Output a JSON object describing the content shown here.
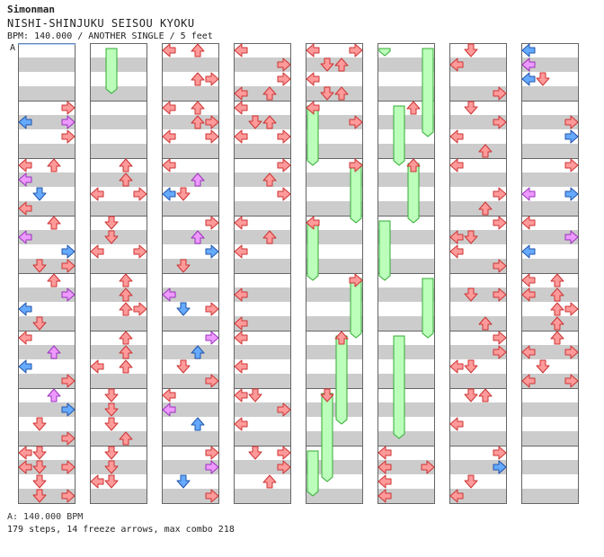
{
  "header": {
    "author": "Simonman",
    "title": "NISHI-SHINJUKU SEISOU KYOKU",
    "meta": "BPM: 140.000 / ANOTHER SINGLE / 5 feet",
    "section_marker": "A"
  },
  "footer": {
    "bpm_line": "A: 140.000 BPM",
    "stats_line": "179 steps, 14 freeze arrows, max combo 218"
  },
  "colors": {
    "arrow_red": "#ff9a9a",
    "arrow_blue": "#66aaff",
    "arrow_violet": "#ee99ff",
    "freeze_green": "#bbffbb",
    "row_gray": "#cccccc"
  },
  "chart_data": {
    "type": "step-chart",
    "columns": 8,
    "measures_per_column": 8,
    "lanes": [
      "left",
      "down",
      "up",
      "right"
    ],
    "arrows": [
      [
        0,
        1,
        0,
        3,
        "red"
      ],
      [
        0,
        1,
        1,
        3,
        "violet"
      ],
      [
        0,
        1,
        1,
        0,
        "blue"
      ],
      [
        0,
        1,
        2,
        3,
        "red"
      ],
      [
        0,
        2,
        0,
        0,
        "red"
      ],
      [
        0,
        2,
        0,
        2,
        "red"
      ],
      [
        0,
        2,
        1,
        0,
        "violet"
      ],
      [
        0,
        2,
        2,
        1,
        "blue"
      ],
      [
        0,
        2,
        3,
        0,
        "red"
      ],
      [
        0,
        3,
        0,
        2,
        "red"
      ],
      [
        0,
        3,
        1,
        0,
        "violet"
      ],
      [
        0,
        3,
        2,
        3,
        "blue"
      ],
      [
        0,
        3,
        3,
        1,
        "red"
      ],
      [
        0,
        3,
        3,
        3,
        "red"
      ],
      [
        0,
        4,
        0,
        2,
        "red"
      ],
      [
        0,
        4,
        1,
        3,
        "violet"
      ],
      [
        0,
        4,
        2,
        0,
        "blue"
      ],
      [
        0,
        4,
        3,
        1,
        "red"
      ],
      [
        0,
        5,
        0,
        0,
        "red"
      ],
      [
        0,
        5,
        1,
        2,
        "violet"
      ],
      [
        0,
        5,
        2,
        0,
        "blue"
      ],
      [
        0,
        5,
        3,
        3,
        "red"
      ],
      [
        0,
        6,
        0,
        2,
        "violet"
      ],
      [
        0,
        6,
        1,
        3,
        "blue"
      ],
      [
        0,
        6,
        2,
        1,
        "red"
      ],
      [
        0,
        6,
        3,
        3,
        "red"
      ],
      [
        0,
        7,
        0,
        0,
        "red"
      ],
      [
        0,
        7,
        0,
        1,
        "red"
      ],
      [
        0,
        7,
        1,
        0,
        "red"
      ],
      [
        0,
        7,
        1,
        1,
        "red"
      ],
      [
        0,
        7,
        1,
        3,
        "red"
      ],
      [
        0,
        7,
        2,
        1,
        "red"
      ],
      [
        0,
        7,
        3,
        1,
        "red"
      ],
      [
        0,
        7,
        3,
        3,
        "red"
      ],
      [
        1,
        2,
        0,
        2,
        "red"
      ],
      [
        1,
        2,
        1,
        2,
        "red"
      ],
      [
        1,
        2,
        2,
        0,
        "red"
      ],
      [
        1,
        2,
        2,
        3,
        "red"
      ],
      [
        1,
        3,
        0,
        1,
        "red"
      ],
      [
        1,
        3,
        1,
        1,
        "red"
      ],
      [
        1,
        3,
        2,
        0,
        "red"
      ],
      [
        1,
        3,
        2,
        3,
        "red"
      ],
      [
        1,
        4,
        0,
        2,
        "red"
      ],
      [
        1,
        4,
        1,
        2,
        "red"
      ],
      [
        1,
        4,
        2,
        2,
        "red"
      ],
      [
        1,
        4,
        2,
        3,
        "red"
      ],
      [
        1,
        5,
        0,
        2,
        "red"
      ],
      [
        1,
        5,
        1,
        2,
        "red"
      ],
      [
        1,
        5,
        2,
        0,
        "red"
      ],
      [
        1,
        5,
        2,
        2,
        "red"
      ],
      [
        1,
        6,
        0,
        1,
        "red"
      ],
      [
        1,
        6,
        1,
        1,
        "red"
      ],
      [
        1,
        6,
        2,
        1,
        "red"
      ],
      [
        1,
        6,
        3,
        2,
        "red"
      ],
      [
        1,
        7,
        0,
        1,
        "red"
      ],
      [
        1,
        7,
        1,
        1,
        "red"
      ],
      [
        1,
        7,
        2,
        0,
        "red"
      ],
      [
        1,
        7,
        2,
        1,
        "red"
      ],
      [
        2,
        0,
        0,
        0,
        "red"
      ],
      [
        2,
        0,
        0,
        2,
        "red"
      ],
      [
        2,
        0,
        2,
        2,
        "red"
      ],
      [
        2,
        0,
        2,
        3,
        "red"
      ],
      [
        2,
        1,
        0,
        0,
        "red"
      ],
      [
        2,
        1,
        0,
        2,
        "red"
      ],
      [
        2,
        1,
        1,
        2,
        "red"
      ],
      [
        2,
        1,
        1,
        3,
        "red"
      ],
      [
        2,
        1,
        2,
        0,
        "red"
      ],
      [
        2,
        1,
        2,
        3,
        "red"
      ],
      [
        2,
        2,
        0,
        0,
        "red"
      ],
      [
        2,
        2,
        1,
        2,
        "violet"
      ],
      [
        2,
        2,
        2,
        0,
        "blue"
      ],
      [
        2,
        2,
        2,
        1,
        "red"
      ],
      [
        2,
        3,
        0,
        3,
        "red"
      ],
      [
        2,
        3,
        1,
        2,
        "violet"
      ],
      [
        2,
        3,
        2,
        3,
        "blue"
      ],
      [
        2,
        3,
        3,
        1,
        "red"
      ],
      [
        2,
        4,
        1,
        0,
        "violet"
      ],
      [
        2,
        4,
        2,
        1,
        "blue"
      ],
      [
        2,
        4,
        2,
        3,
        "red"
      ],
      [
        2,
        5,
        0,
        3,
        "violet"
      ],
      [
        2,
        5,
        1,
        2,
        "blue"
      ],
      [
        2,
        5,
        2,
        1,
        "red"
      ],
      [
        2,
        5,
        3,
        3,
        "red"
      ],
      [
        2,
        6,
        0,
        0,
        "red"
      ],
      [
        2,
        6,
        1,
        0,
        "violet"
      ],
      [
        2,
        6,
        2,
        2,
        "blue"
      ],
      [
        2,
        7,
        0,
        3,
        "red"
      ],
      [
        2,
        7,
        1,
        3,
        "violet"
      ],
      [
        2,
        7,
        2,
        1,
        "blue"
      ],
      [
        2,
        7,
        3,
        3,
        "red"
      ],
      [
        3,
        0,
        0,
        0,
        "red"
      ],
      [
        3,
        0,
        1,
        3,
        "red"
      ],
      [
        3,
        0,
        2,
        3,
        "red"
      ],
      [
        3,
        0,
        3,
        0,
        "red"
      ],
      [
        3,
        0,
        3,
        2,
        "red"
      ],
      [
        3,
        1,
        0,
        0,
        "red"
      ],
      [
        3,
        1,
        1,
        1,
        "red"
      ],
      [
        3,
        1,
        1,
        2,
        "red"
      ],
      [
        3,
        1,
        2,
        0,
        "red"
      ],
      [
        3,
        1,
        2,
        3,
        "red"
      ],
      [
        3,
        2,
        0,
        3,
        "red"
      ],
      [
        3,
        2,
        1,
        2,
        "red"
      ],
      [
        3,
        2,
        2,
        3,
        "red"
      ],
      [
        3,
        3,
        0,
        0,
        "red"
      ],
      [
        3,
        3,
        1,
        2,
        "red"
      ],
      [
        3,
        3,
        2,
        0,
        "red"
      ],
      [
        3,
        4,
        1,
        0,
        "red"
      ],
      [
        3,
        4,
        3,
        0,
        "red"
      ],
      [
        3,
        5,
        0,
        0,
        "red"
      ],
      [
        3,
        5,
        2,
        0,
        "red"
      ],
      [
        3,
        6,
        0,
        0,
        "red"
      ],
      [
        3,
        6,
        0,
        1,
        "red"
      ],
      [
        3,
        6,
        1,
        3,
        "red"
      ],
      [
        3,
        6,
        2,
        0,
        "red"
      ],
      [
        3,
        7,
        0,
        1,
        "red"
      ],
      [
        3,
        7,
        0,
        3,
        "red"
      ],
      [
        3,
        7,
        1,
        3,
        "red"
      ],
      [
        3,
        7,
        2,
        2,
        "red"
      ],
      [
        4,
        0,
        0,
        0,
        "red"
      ],
      [
        4,
        0,
        0,
        3,
        "red"
      ],
      [
        4,
        0,
        1,
        1,
        "red"
      ],
      [
        4,
        0,
        1,
        2,
        "red"
      ],
      [
        4,
        0,
        2,
        0,
        "red"
      ],
      [
        4,
        0,
        3,
        1,
        "red"
      ],
      [
        4,
        0,
        3,
        2,
        "red"
      ],
      [
        4,
        1,
        0,
        0,
        "red"
      ],
      [
        4,
        1,
        1,
        3,
        "red"
      ],
      [
        4,
        2,
        0,
        3,
        "red"
      ],
      [
        4,
        3,
        0,
        0,
        "red"
      ],
      [
        4,
        4,
        0,
        3,
        "red"
      ],
      [
        4,
        5,
        0,
        2,
        "red"
      ],
      [
        4,
        6,
        0,
        1,
        "red"
      ],
      [
        5,
        1,
        0,
        2,
        "red"
      ],
      [
        5,
        2,
        0,
        2,
        "red"
      ],
      [
        5,
        7,
        0,
        0,
        "red"
      ],
      [
        5,
        7,
        1,
        0,
        "red"
      ],
      [
        5,
        7,
        1,
        3,
        "red"
      ],
      [
        5,
        7,
        2,
        0,
        "red"
      ],
      [
        5,
        7,
        3,
        0,
        "red"
      ],
      [
        6,
        0,
        0,
        1,
        "red"
      ],
      [
        6,
        0,
        1,
        0,
        "red"
      ],
      [
        6,
        0,
        3,
        3,
        "red"
      ],
      [
        6,
        1,
        0,
        1,
        "red"
      ],
      [
        6,
        1,
        1,
        3,
        "red"
      ],
      [
        6,
        1,
        2,
        0,
        "red"
      ],
      [
        6,
        1,
        3,
        2,
        "red"
      ],
      [
        6,
        2,
        0,
        0,
        "red"
      ],
      [
        6,
        2,
        2,
        3,
        "red"
      ],
      [
        6,
        2,
        3,
        2,
        "red"
      ],
      [
        6,
        3,
        0,
        3,
        "red"
      ],
      [
        6,
        3,
        1,
        0,
        "red"
      ],
      [
        6,
        3,
        1,
        1,
        "red"
      ],
      [
        6,
        3,
        2,
        0,
        "red"
      ],
      [
        6,
        3,
        3,
        3,
        "red"
      ],
      [
        6,
        4,
        1,
        1,
        "red"
      ],
      [
        6,
        4,
        1,
        3,
        "red"
      ],
      [
        6,
        4,
        3,
        2,
        "red"
      ],
      [
        6,
        5,
        0,
        3,
        "red"
      ],
      [
        6,
        5,
        1,
        3,
        "red"
      ],
      [
        6,
        5,
        2,
        0,
        "red"
      ],
      [
        6,
        5,
        2,
        1,
        "red"
      ],
      [
        6,
        6,
        0,
        1,
        "red"
      ],
      [
        6,
        6,
        0,
        2,
        "red"
      ],
      [
        6,
        6,
        2,
        0,
        "red"
      ],
      [
        6,
        7,
        0,
        3,
        "red"
      ],
      [
        6,
        7,
        1,
        3,
        "violet"
      ],
      [
        6,
        7,
        1,
        3,
        "blue"
      ],
      [
        6,
        7,
        2,
        1,
        "red"
      ],
      [
        6,
        7,
        3,
        0,
        "red"
      ],
      [
        7,
        0,
        0,
        0,
        "blue"
      ],
      [
        7,
        0,
        1,
        0,
        "red"
      ],
      [
        7,
        0,
        1,
        0,
        "violet"
      ],
      [
        7,
        0,
        2,
        0,
        "blue"
      ],
      [
        7,
        0,
        2,
        1,
        "red"
      ],
      [
        7,
        1,
        1,
        3,
        "red"
      ],
      [
        7,
        1,
        2,
        3,
        "violet"
      ],
      [
        7,
        1,
        2,
        3,
        "blue"
      ],
      [
        7,
        2,
        0,
        3,
        "red"
      ],
      [
        7,
        2,
        2,
        0,
        "violet"
      ],
      [
        7,
        2,
        2,
        3,
        "blue"
      ],
      [
        7,
        3,
        0,
        0,
        "red"
      ],
      [
        7,
        3,
        1,
        3,
        "violet"
      ],
      [
        7,
        3,
        2,
        0,
        "blue"
      ],
      [
        7,
        4,
        0,
        0,
        "red"
      ],
      [
        7,
        4,
        0,
        2,
        "red"
      ],
      [
        7,
        4,
        1,
        0,
        "red"
      ],
      [
        7,
        4,
        1,
        2,
        "red"
      ],
      [
        7,
        4,
        2,
        2,
        "red"
      ],
      [
        7,
        4,
        2,
        3,
        "red"
      ],
      [
        7,
        4,
        3,
        2,
        "red"
      ],
      [
        7,
        5,
        0,
        2,
        "red"
      ],
      [
        7,
        5,
        1,
        0,
        "red"
      ],
      [
        7,
        5,
        1,
        3,
        "red"
      ],
      [
        7,
        5,
        2,
        1,
        "red"
      ],
      [
        7,
        5,
        3,
        0,
        "red"
      ],
      [
        7,
        5,
        3,
        3,
        "red"
      ]
    ],
    "freezes": [
      [
        1,
        0,
        0,
        1,
        0,
        3
      ],
      [
        4,
        1,
        0,
        0,
        2,
        0
      ],
      [
        4,
        2,
        0,
        3,
        3,
        0
      ],
      [
        4,
        3,
        0,
        0,
        4,
        0
      ],
      [
        4,
        4,
        0,
        3,
        5,
        0
      ],
      [
        4,
        5,
        0,
        2,
        6,
        2
      ],
      [
        4,
        6,
        0,
        1,
        7,
        2
      ],
      [
        4,
        7,
        0,
        0,
        7,
        3
      ],
      [
        5,
        0,
        0,
        0,
        0,
        0
      ],
      [
        5,
        0,
        0,
        3,
        1,
        2
      ],
      [
        5,
        1,
        0,
        1,
        2,
        0
      ],
      [
        5,
        2,
        0,
        2,
        3,
        0
      ],
      [
        5,
        3,
        0,
        0,
        4,
        0
      ],
      [
        5,
        4,
        0,
        3,
        5,
        0
      ],
      [
        5,
        5,
        0,
        1,
        6,
        3
      ]
    ]
  }
}
